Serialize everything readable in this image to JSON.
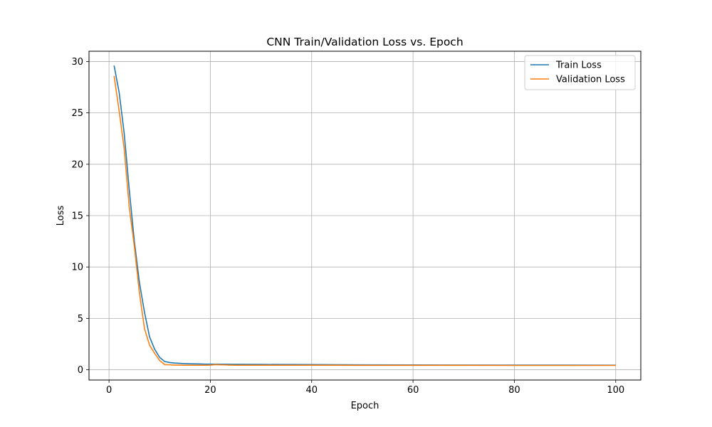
{
  "chart_data": {
    "type": "line",
    "title": "CNN Train/Validation Loss vs. Epoch",
    "xlabel": "Epoch",
    "ylabel": "Loss",
    "xlim": [
      -3.95,
      104.95
    ],
    "ylim": [
      -1.0,
      31.0
    ],
    "xticks": [
      0,
      20,
      40,
      60,
      80,
      100
    ],
    "yticks": [
      0,
      5,
      10,
      15,
      20,
      25,
      30
    ],
    "grid": true,
    "legend_position": "top-right",
    "series": [
      {
        "name": "Train Loss",
        "color": "#1f77b4",
        "x": [
          1,
          2,
          3,
          4,
          5,
          6,
          7,
          8,
          9,
          10,
          11,
          12,
          13,
          14,
          15,
          16,
          17,
          18,
          19,
          20,
          25,
          30,
          40,
          50,
          60,
          70,
          80,
          90,
          100
        ],
        "y": [
          29.6,
          27.0,
          23.0,
          17.5,
          12.5,
          8.5,
          5.6,
          3.2,
          2.0,
          1.2,
          0.8,
          0.7,
          0.65,
          0.62,
          0.6,
          0.58,
          0.57,
          0.56,
          0.55,
          0.55,
          0.53,
          0.52,
          0.5,
          0.48,
          0.47,
          0.46,
          0.45,
          0.45,
          0.44
        ]
      },
      {
        "name": "Validation Loss",
        "color": "#ff7f0e",
        "x": [
          1,
          2,
          3,
          4,
          5,
          6,
          7,
          8,
          9,
          10,
          11,
          12,
          13,
          14,
          15,
          16,
          17,
          18,
          19,
          20,
          21,
          22,
          25,
          30,
          40,
          50,
          60,
          70,
          80,
          90,
          100
        ],
        "y": [
          28.6,
          25.2,
          21.5,
          15.8,
          12.0,
          7.5,
          4.0,
          2.4,
          1.6,
          0.9,
          0.5,
          0.48,
          0.46,
          0.45,
          0.44,
          0.44,
          0.44,
          0.44,
          0.44,
          0.45,
          0.5,
          0.48,
          0.44,
          0.44,
          0.44,
          0.43,
          0.43,
          0.43,
          0.42,
          0.42,
          0.42
        ]
      }
    ]
  }
}
